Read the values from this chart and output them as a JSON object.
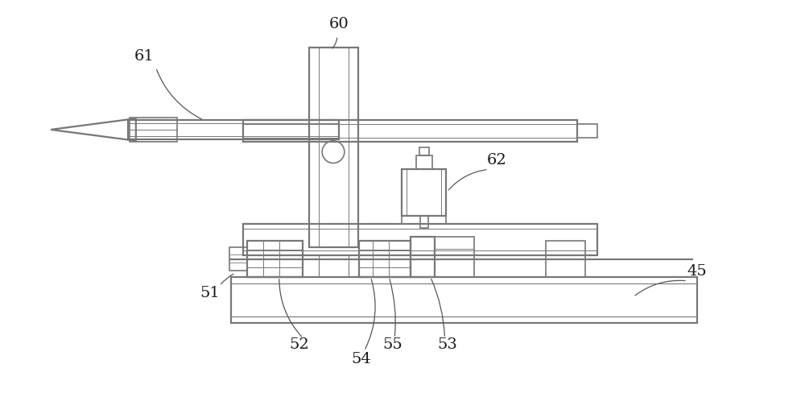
{
  "bg_color": "#ffffff",
  "lc": "#777777",
  "lc_dark": "#444444",
  "fig_width": 10.0,
  "fig_height": 4.88,
  "dpi": 100
}
